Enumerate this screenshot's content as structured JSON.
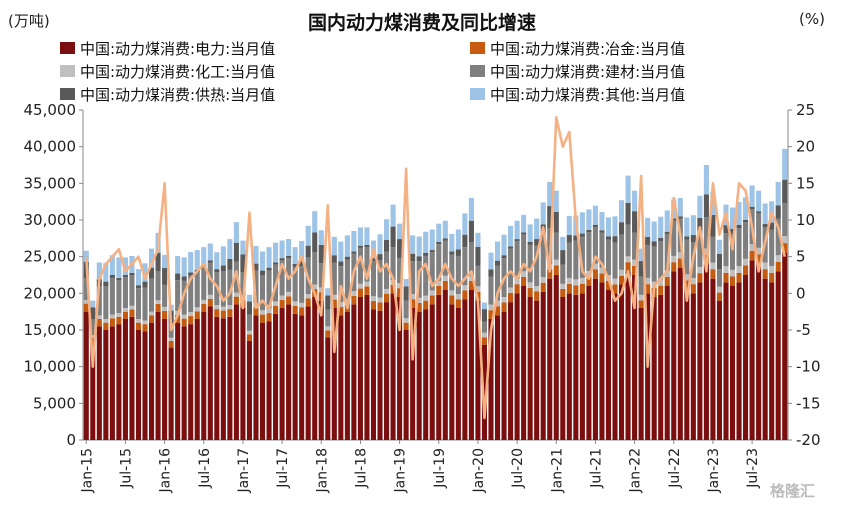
{
  "title": "国内动力煤消费及同比增速",
  "unit_left": "(万吨)",
  "unit_right": "(%)",
  "watermark": "格隆汇",
  "chart_data": {
    "type": "bar",
    "stacked": true,
    "title": "国内动力煤消费及同比增速",
    "xlabel": "",
    "ylabel": "(万吨)",
    "y2label": "(%)",
    "ylim": [
      0,
      45000
    ],
    "y2lim": [
      -20,
      25
    ],
    "yticks": [
      "45,000",
      "40,000",
      "35,000",
      "30,000",
      "25,000",
      "20,000",
      "15,000",
      "10,000",
      "5,000",
      "0"
    ],
    "y2ticks": [
      "25",
      "20",
      "15",
      "10",
      "5",
      "0",
      "-5",
      "-10",
      "-15",
      "-20"
    ],
    "x_tick_labels": [
      "Jan-15",
      "Jul-15",
      "Jan-16",
      "Jul-16",
      "Jan-17",
      "Jul-17",
      "Jan-18",
      "Jul-18",
      "Jan-19",
      "Jul-19",
      "Jan-20",
      "Jul-20",
      "Jan-21",
      "Jul-21",
      "Jan-22",
      "Jul-22",
      "Jan-23",
      "Jul-23"
    ],
    "grid": false,
    "legend_placement": "top",
    "months": [
      "2015-01",
      "2015-02",
      "2015-03",
      "2015-04",
      "2015-05",
      "2015-06",
      "2015-07",
      "2015-08",
      "2015-09",
      "2015-10",
      "2015-11",
      "2015-12",
      "2016-01",
      "2016-02",
      "2016-03",
      "2016-04",
      "2016-05",
      "2016-06",
      "2016-07",
      "2016-08",
      "2016-09",
      "2016-10",
      "2016-11",
      "2016-12",
      "2017-01",
      "2017-02",
      "2017-03",
      "2017-04",
      "2017-05",
      "2017-06",
      "2017-07",
      "2017-08",
      "2017-09",
      "2017-10",
      "2017-11",
      "2017-12",
      "2018-01",
      "2018-02",
      "2018-03",
      "2018-04",
      "2018-05",
      "2018-06",
      "2018-07",
      "2018-08",
      "2018-09",
      "2018-10",
      "2018-11",
      "2018-12",
      "2019-01",
      "2019-02",
      "2019-03",
      "2019-04",
      "2019-05",
      "2019-06",
      "2019-07",
      "2019-08",
      "2019-09",
      "2019-10",
      "2019-11",
      "2019-12",
      "2020-01",
      "2020-02",
      "2020-03",
      "2020-04",
      "2020-05",
      "2020-06",
      "2020-07",
      "2020-08",
      "2020-09",
      "2020-10",
      "2020-11",
      "2020-12",
      "2021-01",
      "2021-02",
      "2021-03",
      "2021-04",
      "2021-05",
      "2021-06",
      "2021-07",
      "2021-08",
      "2021-09",
      "2021-10",
      "2021-11",
      "2021-12",
      "2022-01",
      "2022-02",
      "2022-03",
      "2022-04",
      "2022-05",
      "2022-06",
      "2022-07",
      "2022-08",
      "2022-09",
      "2022-10",
      "2022-11",
      "2022-12",
      "2023-01",
      "2023-02",
      "2023-03",
      "2023-04",
      "2023-05",
      "2023-06",
      "2023-07",
      "2023-08",
      "2023-09",
      "2023-10",
      "2023-11",
      "2023-12"
    ],
    "series": [
      {
        "name": "中国:动力煤消费:电力:当月值",
        "color": "#7b0f0f",
        "values": [
          17500,
          13000,
          15500,
          15000,
          15500,
          15800,
          16500,
          16800,
          15000,
          14800,
          16000,
          17500,
          16500,
          12600,
          16000,
          15500,
          15800,
          16500,
          17500,
          18200,
          16800,
          16600,
          16800,
          18500,
          18000,
          13500,
          17000,
          16000,
          16200,
          17200,
          18000,
          18500,
          17200,
          17000,
          18200,
          19500,
          19000,
          14000,
          18000,
          17000,
          17500,
          18500,
          19500,
          19800,
          17800,
          17600,
          18800,
          20000,
          19500,
          15000,
          18000,
          17500,
          17800,
          18500,
          19800,
          20500,
          18500,
          18000,
          19200,
          20500,
          19000,
          13000,
          16500,
          17000,
          17500,
          18800,
          20000,
          21000,
          19500,
          19000,
          20200,
          22000,
          22500,
          19500,
          20000,
          19800,
          20000,
          21000,
          22000,
          21500,
          20500,
          20000,
          21200,
          23000,
          22500,
          18000,
          20000,
          19500,
          19800,
          21000,
          23000,
          23500,
          20500,
          20000,
          21500,
          24000,
          22000,
          19000,
          21500,
          21000,
          21500,
          22500,
          24500,
          24000,
          22000,
          21500,
          23000,
          25500
        ]
      },
      {
        "name": "中国:动力煤消费:冶金:当月值",
        "color": "#c55a11",
        "values": [
          1100,
          900,
          1000,
          1000,
          1100,
          1000,
          1000,
          1000,
          1000,
          1000,
          1000,
          1050,
          1100,
          900,
          1050,
          1050,
          1100,
          1050,
          1050,
          1050,
          1050,
          1050,
          1050,
          1050,
          1100,
          900,
          1100,
          1100,
          1100,
          1100,
          1100,
          1100,
          1100,
          1100,
          1100,
          1100,
          1150,
          950,
          1150,
          1150,
          1150,
          1150,
          1150,
          1150,
          1150,
          1150,
          1150,
          1150,
          1200,
          1000,
          1200,
          1200,
          1200,
          1200,
          1200,
          1200,
          1200,
          1200,
          1200,
          1200,
          1200,
          1000,
          1200,
          1250,
          1250,
          1250,
          1250,
          1250,
          1250,
          1250,
          1250,
          1250,
          1300,
          1100,
          1300,
          1300,
          1300,
          1250,
          1250,
          1200,
          1200,
          1200,
          1200,
          1250,
          1250,
          1050,
          1250,
          1250,
          1250,
          1250,
          1250,
          1250,
          1250,
          1250,
          1250,
          1250,
          1300,
          1100,
          1300,
          1300,
          1300,
          1300,
          1300,
          1300,
          1300,
          1300,
          1300,
          1350
        ]
      },
      {
        "name": "中国:动力煤消费:化工:当月值",
        "color": "#bfbfbf",
        "values": [
          500,
          400,
          500,
          500,
          500,
          500,
          500,
          500,
          500,
          500,
          500,
          500,
          550,
          450,
          550,
          550,
          550,
          550,
          550,
          550,
          550,
          550,
          550,
          550,
          600,
          500,
          600,
          600,
          600,
          600,
          600,
          600,
          600,
          600,
          600,
          600,
          650,
          550,
          650,
          650,
          650,
          650,
          650,
          650,
          650,
          650,
          650,
          650,
          700,
          600,
          700,
          700,
          700,
          700,
          700,
          700,
          700,
          700,
          700,
          700,
          750,
          650,
          750,
          750,
          750,
          750,
          750,
          750,
          750,
          750,
          750,
          750,
          800,
          700,
          800,
          800,
          800,
          800,
          800,
          800,
          800,
          800,
          800,
          800,
          850,
          750,
          850,
          850,
          850,
          850,
          850,
          850,
          850,
          850,
          850,
          850,
          900,
          800,
          900,
          900,
          900,
          900,
          900,
          900,
          900,
          900,
          900,
          950
        ]
      },
      {
        "name": "中国:动力煤消费:建材:当月值",
        "color": "#7f7f7f",
        "values": [
          3000,
          2200,
          4000,
          4500,
          5000,
          4500,
          4200,
          4200,
          4200,
          4500,
          4500,
          4000,
          3000,
          2000,
          4200,
          4600,
          5000,
          4800,
          4500,
          4400,
          4500,
          4800,
          4800,
          4200,
          3200,
          2200,
          4400,
          4800,
          5200,
          5000,
          4800,
          4600,
          4700,
          5000,
          5000,
          4400,
          3300,
          2300,
          4400,
          4900,
          5300,
          5100,
          4900,
          4700,
          4800,
          5100,
          5100,
          4500,
          3400,
          2400,
          4500,
          5000,
          5400,
          5200,
          5000,
          4800,
          4900,
          5200,
          5200,
          4600,
          2800,
          1500,
          3800,
          4800,
          5300,
          5300,
          5100,
          5000,
          5100,
          5500,
          5500,
          4900,
          3700,
          2600,
          4800,
          5300,
          5600,
          5300,
          5000,
          4800,
          4800,
          4900,
          4800,
          4300,
          3700,
          2500,
          4500,
          4800,
          5200,
          5000,
          4800,
          4600,
          4700,
          4900,
          4900,
          4300,
          3500,
          2400,
          4500,
          4900,
          5200,
          5000,
          4800,
          4700,
          4800,
          5000,
          5000,
          4500
        ]
      },
      {
        "name": "中国:动力煤消费:供热:当月值",
        "color": "#595959",
        "values": [
          2200,
          1600,
          900,
          600,
          400,
          300,
          300,
          300,
          400,
          800,
          1500,
          2500,
          2300,
          1700,
          900,
          600,
          400,
          300,
          300,
          300,
          400,
          800,
          1500,
          2600,
          2400,
          1800,
          950,
          600,
          400,
          300,
          300,
          300,
          400,
          850,
          1600,
          2700,
          2500,
          1900,
          1000,
          650,
          400,
          300,
          300,
          300,
          400,
          850,
          1600,
          2800,
          2600,
          1950,
          1000,
          650,
          400,
          300,
          300,
          300,
          400,
          900,
          1700,
          2900,
          2600,
          1700,
          1000,
          650,
          400,
          300,
          300,
          300,
          400,
          900,
          1700,
          3000,
          2800,
          2000,
          1050,
          700,
          450,
          300,
          300,
          300,
          450,
          900,
          1700,
          3000,
          2900,
          2100,
          1100,
          700,
          450,
          300,
          300,
          300,
          450,
          950,
          1800,
          3100,
          3000,
          2100,
          1100,
          700,
          450,
          300,
          300,
          300,
          450,
          950,
          1800,
          3200
        ]
      },
      {
        "name": "中国:动力煤消费:其他:当月值",
        "color": "#9dc3e6",
        "values": [
          1500,
          900,
          2300,
          2500,
          2700,
          2800,
          2400,
          2300,
          2200,
          2500,
          2600,
          2700,
          1800,
          800,
          2400,
          2600,
          2800,
          2700,
          2400,
          2300,
          2300,
          2600,
          2700,
          2800,
          1900,
          900,
          2400,
          2600,
          2800,
          2700,
          2400,
          2300,
          2300,
          2600,
          2700,
          2900,
          2000,
          1000,
          2500,
          2700,
          2900,
          2800,
          2500,
          2400,
          2400,
          2700,
          2800,
          3000,
          2100,
          1000,
          2500,
          2700,
          2900,
          2800,
          2500,
          2400,
          2400,
          2700,
          2900,
          3100,
          1900,
          900,
          2300,
          2600,
          2800,
          2800,
          2500,
          2400,
          2400,
          2800,
          3000,
          3300,
          2900,
          1800,
          2600,
          2700,
          2900,
          2800,
          2600,
          2500,
          2600,
          2700,
          3000,
          3700,
          2800,
          1700,
          2600,
          2700,
          2900,
          2900,
          2600,
          2500,
          2600,
          2700,
          3000,
          4000,
          3200,
          1900,
          2800,
          2900,
          3100,
          3100,
          2900,
          2800,
          2800,
          2900,
          3200,
          4200
        ]
      }
    ],
    "line_series": {
      "name": "同比增速",
      "axis": "right",
      "color": "#f4b183",
      "values": [
        5,
        -10,
        2,
        4,
        5,
        6,
        3,
        4,
        5,
        2,
        4,
        6,
        15,
        -5,
        -3,
        0,
        2,
        3,
        4,
        2,
        1,
        -1,
        0,
        3,
        -2,
        11,
        -2,
        -1,
        -2,
        1,
        4,
        2,
        3,
        5,
        2,
        0,
        -3,
        12,
        -8,
        1,
        -2,
        3,
        5,
        2,
        6,
        3,
        4,
        2,
        -5,
        17,
        -9,
        3,
        4,
        1,
        2,
        4,
        2,
        1,
        2,
        3,
        -1,
        -17,
        -5,
        0,
        2,
        3,
        2,
        4,
        3,
        5,
        9,
        3,
        24,
        20,
        22,
        10,
        3,
        2,
        5,
        4,
        2,
        -1,
        0,
        3,
        -2,
        16,
        -10,
        1,
        2,
        3,
        13,
        8,
        -1,
        5,
        9,
        3,
        15,
        8,
        11,
        6,
        15,
        14,
        9,
        3,
        7,
        11,
        9,
        5
      ]
    }
  }
}
